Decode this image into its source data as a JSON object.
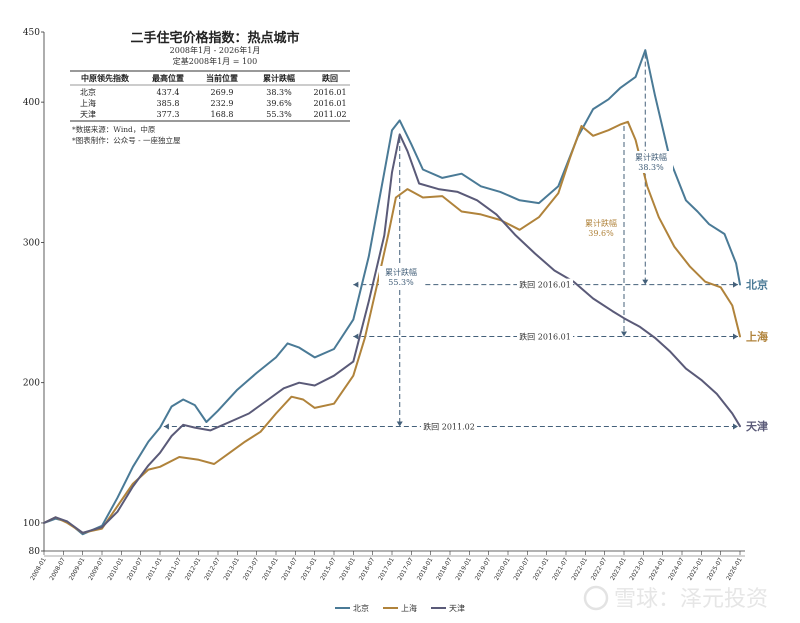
{
  "chart_data": {
    "type": "line",
    "title": "二手住宅价格指数：热点城市",
    "subtitle_period": "2008年1月 - 2026年1月",
    "subtitle_base": "定基2008年1月 = 100",
    "ylim": [
      80,
      450
    ],
    "yticks": [
      80,
      100,
      200,
      300,
      400,
      450
    ],
    "x_ticks": [
      "2008-01",
      "2008-07",
      "2009-01",
      "2009-07",
      "2010-01",
      "2010-07",
      "2011-01",
      "2011-07",
      "2012-01",
      "2012-07",
      "2013-01",
      "2013-07",
      "2014-01",
      "2014-07",
      "2015-01",
      "2015-07",
      "2016-01",
      "2016-07",
      "2017-01",
      "2017-07",
      "2018-01",
      "2018-07",
      "2019-01",
      "2019-07",
      "2020-01",
      "2020-07",
      "2021-01",
      "2021-07",
      "2022-01",
      "2022-07",
      "2023-01",
      "2023-07",
      "2024-01",
      "2024-07",
      "2025-01",
      "2025-07",
      "2026-01"
    ],
    "colors": {
      "beijing": "#4a7a96",
      "shanghai": "#b0833b",
      "tianjin": "#5a5a78",
      "guide": "#44607a"
    },
    "series": [
      {
        "key": "beijing",
        "name": "北京",
        "end_label": "北京",
        "points": [
          [
            2008.0,
            100
          ],
          [
            2008.3,
            103
          ],
          [
            2008.6,
            101
          ],
          [
            2009.0,
            92
          ],
          [
            2009.5,
            98
          ],
          [
            2009.9,
            118
          ],
          [
            2010.3,
            140
          ],
          [
            2010.7,
            158
          ],
          [
            2011.0,
            168
          ],
          [
            2011.3,
            183
          ],
          [
            2011.6,
            188
          ],
          [
            2011.9,
            184
          ],
          [
            2012.2,
            172
          ],
          [
            2012.5,
            180
          ],
          [
            2013.0,
            195
          ],
          [
            2013.5,
            207
          ],
          [
            2014.0,
            218
          ],
          [
            2014.3,
            228
          ],
          [
            2014.6,
            225
          ],
          [
            2015.0,
            218
          ],
          [
            2015.5,
            224
          ],
          [
            2016.0,
            245
          ],
          [
            2016.4,
            290
          ],
          [
            2016.8,
            350
          ],
          [
            2017.0,
            380
          ],
          [
            2017.2,
            387
          ],
          [
            2017.5,
            370
          ],
          [
            2017.8,
            352
          ],
          [
            2018.3,
            346
          ],
          [
            2018.8,
            349
          ],
          [
            2019.3,
            340
          ],
          [
            2019.8,
            336
          ],
          [
            2020.3,
            330
          ],
          [
            2020.8,
            328
          ],
          [
            2021.3,
            340
          ],
          [
            2021.8,
            375
          ],
          [
            2022.2,
            395
          ],
          [
            2022.6,
            402
          ],
          [
            2022.9,
            410
          ],
          [
            2023.3,
            418
          ],
          [
            2023.55,
            437
          ],
          [
            2023.8,
            405
          ],
          [
            2024.2,
            358
          ],
          [
            2024.6,
            330
          ],
          [
            2024.9,
            322
          ],
          [
            2025.2,
            313
          ],
          [
            2025.6,
            306
          ],
          [
            2025.9,
            285
          ],
          [
            2026.0,
            270
          ]
        ]
      },
      {
        "key": "shanghai",
        "name": "上海",
        "end_label": "上海",
        "points": [
          [
            2008.0,
            100
          ],
          [
            2008.3,
            104
          ],
          [
            2008.6,
            100
          ],
          [
            2009.0,
            93
          ],
          [
            2009.5,
            96
          ],
          [
            2009.9,
            112
          ],
          [
            2010.3,
            128
          ],
          [
            2010.7,
            138
          ],
          [
            2011.0,
            140
          ],
          [
            2011.5,
            147
          ],
          [
            2012.0,
            145
          ],
          [
            2012.4,
            142
          ],
          [
            2012.8,
            150
          ],
          [
            2013.2,
            158
          ],
          [
            2013.6,
            165
          ],
          [
            2014.0,
            178
          ],
          [
            2014.4,
            190
          ],
          [
            2014.7,
            188
          ],
          [
            2015.0,
            182
          ],
          [
            2015.5,
            185
          ],
          [
            2016.0,
            205
          ],
          [
            2016.3,
            232
          ],
          [
            2016.6,
            268
          ],
          [
            2016.9,
            305
          ],
          [
            2017.1,
            332
          ],
          [
            2017.4,
            338
          ],
          [
            2017.8,
            332
          ],
          [
            2018.3,
            333
          ],
          [
            2018.8,
            322
          ],
          [
            2019.3,
            320
          ],
          [
            2019.8,
            316
          ],
          [
            2020.3,
            309
          ],
          [
            2020.8,
            318
          ],
          [
            2021.3,
            335
          ],
          [
            2021.6,
            360
          ],
          [
            2021.9,
            383
          ],
          [
            2022.2,
            376
          ],
          [
            2022.6,
            380
          ],
          [
            2022.9,
            384
          ],
          [
            2023.1,
            386
          ],
          [
            2023.3,
            373
          ],
          [
            2023.6,
            340
          ],
          [
            2023.9,
            318
          ],
          [
            2024.3,
            297
          ],
          [
            2024.7,
            283
          ],
          [
            2025.1,
            272
          ],
          [
            2025.5,
            268
          ],
          [
            2025.8,
            255
          ],
          [
            2026.0,
            233
          ]
        ]
      },
      {
        "key": "tianjin",
        "name": "天津",
        "end_label": "天津",
        "points": [
          [
            2008.0,
            100
          ],
          [
            2008.3,
            104
          ],
          [
            2008.6,
            101
          ],
          [
            2009.0,
            93
          ],
          [
            2009.5,
            97
          ],
          [
            2009.9,
            108
          ],
          [
            2010.3,
            126
          ],
          [
            2010.7,
            141
          ],
          [
            2011.0,
            150
          ],
          [
            2011.3,
            162
          ],
          [
            2011.6,
            170
          ],
          [
            2011.9,
            168
          ],
          [
            2012.3,
            166
          ],
          [
            2012.8,
            172
          ],
          [
            2013.3,
            178
          ],
          [
            2013.8,
            188
          ],
          [
            2014.2,
            196
          ],
          [
            2014.6,
            200
          ],
          [
            2015.0,
            198
          ],
          [
            2015.5,
            205
          ],
          [
            2016.0,
            215
          ],
          [
            2016.4,
            258
          ],
          [
            2016.8,
            305
          ],
          [
            2017.0,
            350
          ],
          [
            2017.2,
            377
          ],
          [
            2017.4,
            365
          ],
          [
            2017.7,
            342
          ],
          [
            2018.2,
            338
          ],
          [
            2018.7,
            336
          ],
          [
            2019.2,
            330
          ],
          [
            2019.7,
            320
          ],
          [
            2020.2,
            305
          ],
          [
            2020.7,
            292
          ],
          [
            2021.2,
            280
          ],
          [
            2021.7,
            272
          ],
          [
            2022.2,
            260
          ],
          [
            2022.7,
            251
          ],
          [
            2023.0,
            246
          ],
          [
            2023.4,
            240
          ],
          [
            2023.8,
            232
          ],
          [
            2024.2,
            222
          ],
          [
            2024.6,
            210
          ],
          [
            2025.0,
            202
          ],
          [
            2025.4,
            192
          ],
          [
            2025.8,
            178
          ],
          [
            2026.0,
            169
          ]
        ]
      }
    ],
    "table": {
      "headers": [
        "中原领先指数",
        "最高位置",
        "当前位置",
        "累计跌幅",
        "跌回"
      ],
      "rows": [
        [
          "北京",
          "437.4",
          "269.9",
          "38.3%",
          "2016.01"
        ],
        [
          "上海",
          "385.8",
          "232.9",
          "39.6%",
          "2016.01"
        ],
        [
          "天津",
          "377.3",
          "168.8",
          "55.3%",
          "2011.02"
        ]
      ]
    },
    "notes": [
      "*数据来源：Wind，中原",
      "*图表制作：公众号 - 一座独立屋"
    ],
    "annotations": {
      "beijing": {
        "drop_label": "累计跌幅",
        "drop_value": "38.3%",
        "back_label": "跌回 2016.01",
        "peak_x": 2023.55,
        "peak_y": 437.4,
        "end_y": 269.9,
        "back_x": 2016.0
      },
      "shanghai": {
        "drop_label": "累计跌幅",
        "drop_value": "39.6%",
        "back_label": "跌回 2016.01",
        "peak_x": 2023.0,
        "peak_y": 385.8,
        "end_y": 232.9,
        "back_x": 2016.0
      },
      "tianjin": {
        "drop_label": "累计跌幅",
        "drop_value": "55.3%",
        "back_label": "跌回 2011.02",
        "peak_x": 2017.2,
        "peak_y": 377.3,
        "end_y": 168.8,
        "back_x": 2011.1
      }
    },
    "legend": [
      "北京",
      "上海",
      "天津"
    ]
  },
  "watermark": "雪球：泽元投资"
}
